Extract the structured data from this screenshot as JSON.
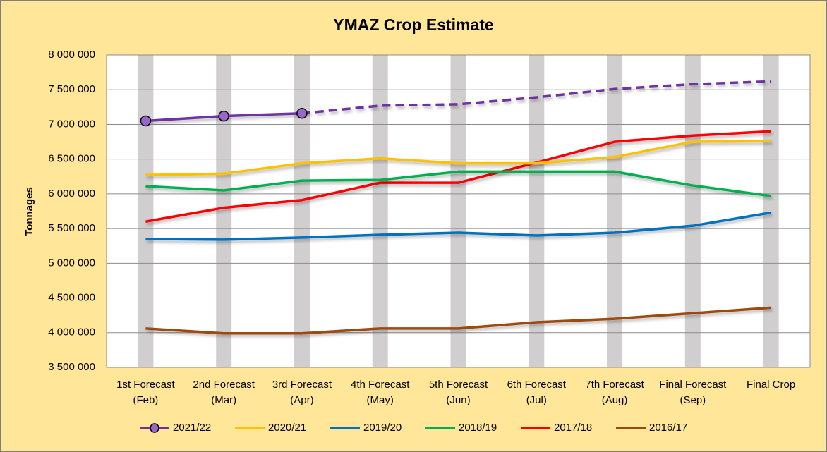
{
  "chart_data": {
    "type": "line",
    "title": "YMAZ Crop Estimate",
    "y_label": "Tonnages",
    "categories": [
      "1st Forecast\n(Feb)",
      "2nd Forecast\n(Mar)",
      "3rd Forecast\n(Apr)",
      "4th Forecast\n(May)",
      "5th Forecast\n(Jun)",
      "6th Forecast\n(Jul)",
      "7th Forecast\n(Aug)",
      "Final Forecast\n(Sep)",
      "Final Crop"
    ],
    "ylim": [
      3500000,
      8000000
    ],
    "yticks": [
      {
        "value": 3500000,
        "label": "3 500 000"
      },
      {
        "value": 4000000,
        "label": "4 000 000"
      },
      {
        "value": 4500000,
        "label": "4 500 000"
      },
      {
        "value": 5000000,
        "label": "5 000 000"
      },
      {
        "value": 5500000,
        "label": "5 500 000"
      },
      {
        "value": 6000000,
        "label": "6 000 000"
      },
      {
        "value": 6500000,
        "label": "6 500 000"
      },
      {
        "value": 7000000,
        "label": "7 000 000"
      },
      {
        "value": 7500000,
        "label": "7 500 000"
      },
      {
        "value": 8000000,
        "label": "8 000 000"
      }
    ],
    "grid": true,
    "legend": "bottom",
    "series": [
      {
        "name": "2021/22",
        "color": "#7030a0",
        "markers": true,
        "dashed_from": 2,
        "values": [
          7050000,
          7120000,
          7160000,
          7270000,
          7290000,
          7390000,
          7510000,
          7580000,
          7620000
        ]
      },
      {
        "name": "2020/21",
        "color": "#ffc000",
        "values": [
          6270000,
          6290000,
          6440000,
          6510000,
          6440000,
          6440000,
          6530000,
          6750000,
          6760000
        ]
      },
      {
        "name": "2019/20",
        "color": "#0070c0",
        "values": [
          5350000,
          5340000,
          5370000,
          5410000,
          5440000,
          5400000,
          5440000,
          5540000,
          5730000
        ]
      },
      {
        "name": "2018/19",
        "color": "#00b050",
        "values": [
          6110000,
          6050000,
          6190000,
          6200000,
          6320000,
          6320000,
          6320000,
          6120000,
          5970000
        ]
      },
      {
        "name": "2017/18",
        "color": "#ff0000",
        "values": [
          5600000,
          5800000,
          5910000,
          6160000,
          6160000,
          6450000,
          6750000,
          6840000,
          6900000
        ]
      },
      {
        "name": "2016/17",
        "color": "#9e480e",
        "values": [
          4060000,
          3990000,
          3990000,
          4060000,
          4060000,
          4150000,
          4200000,
          4280000,
          4360000
        ]
      }
    ]
  }
}
